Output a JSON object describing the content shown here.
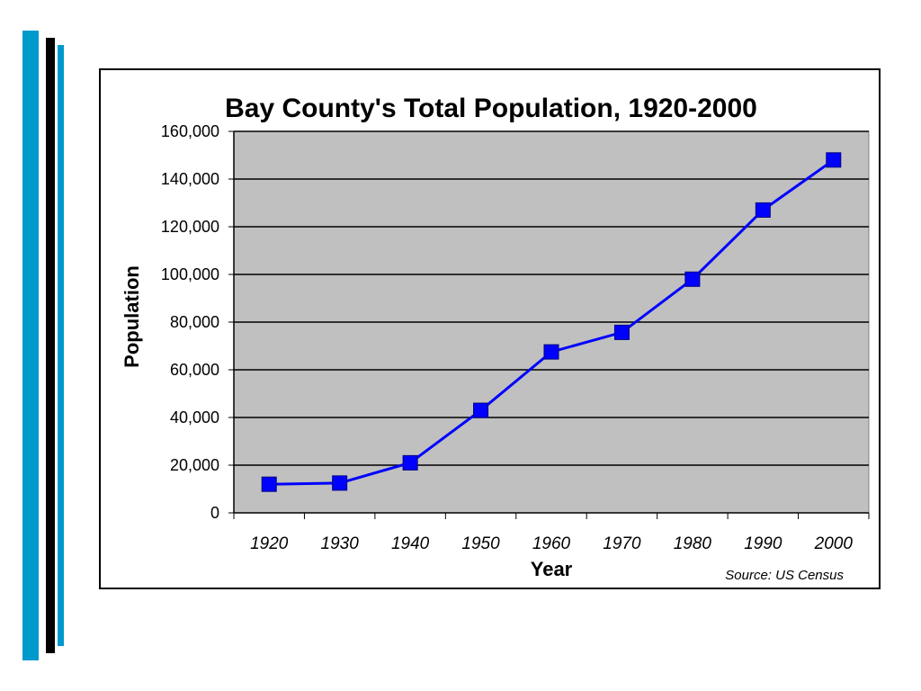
{
  "colors": {
    "accent_blue": "#0099cc",
    "accent_black": "#000000",
    "plot_background": "#c0c0c0",
    "series_color": "#0000ff"
  },
  "chart_data": {
    "type": "line",
    "title": "Bay County's Total Population, 1920-2000",
    "xlabel": "Year",
    "ylabel": "Population",
    "source": "Source: US Census",
    "categories": [
      "1920",
      "1930",
      "1940",
      "1950",
      "1960",
      "1970",
      "1980",
      "1990",
      "2000"
    ],
    "series": [
      {
        "values": [
          12000,
          12500,
          21000,
          43000,
          67500,
          75700,
          98000,
          127000,
          148000
        ],
        "marker": "square",
        "color": "#0000ff"
      }
    ],
    "ylim": [
      0,
      160000
    ],
    "yticks": [
      0,
      20000,
      40000,
      60000,
      80000,
      100000,
      120000,
      140000,
      160000
    ],
    "ytick_labels": [
      "0",
      "20,000",
      "40,000",
      "60,000",
      "80,000",
      "100,000",
      "120,000",
      "140,000",
      "160,000"
    ],
    "grid": "horizontal",
    "legend": "none"
  }
}
